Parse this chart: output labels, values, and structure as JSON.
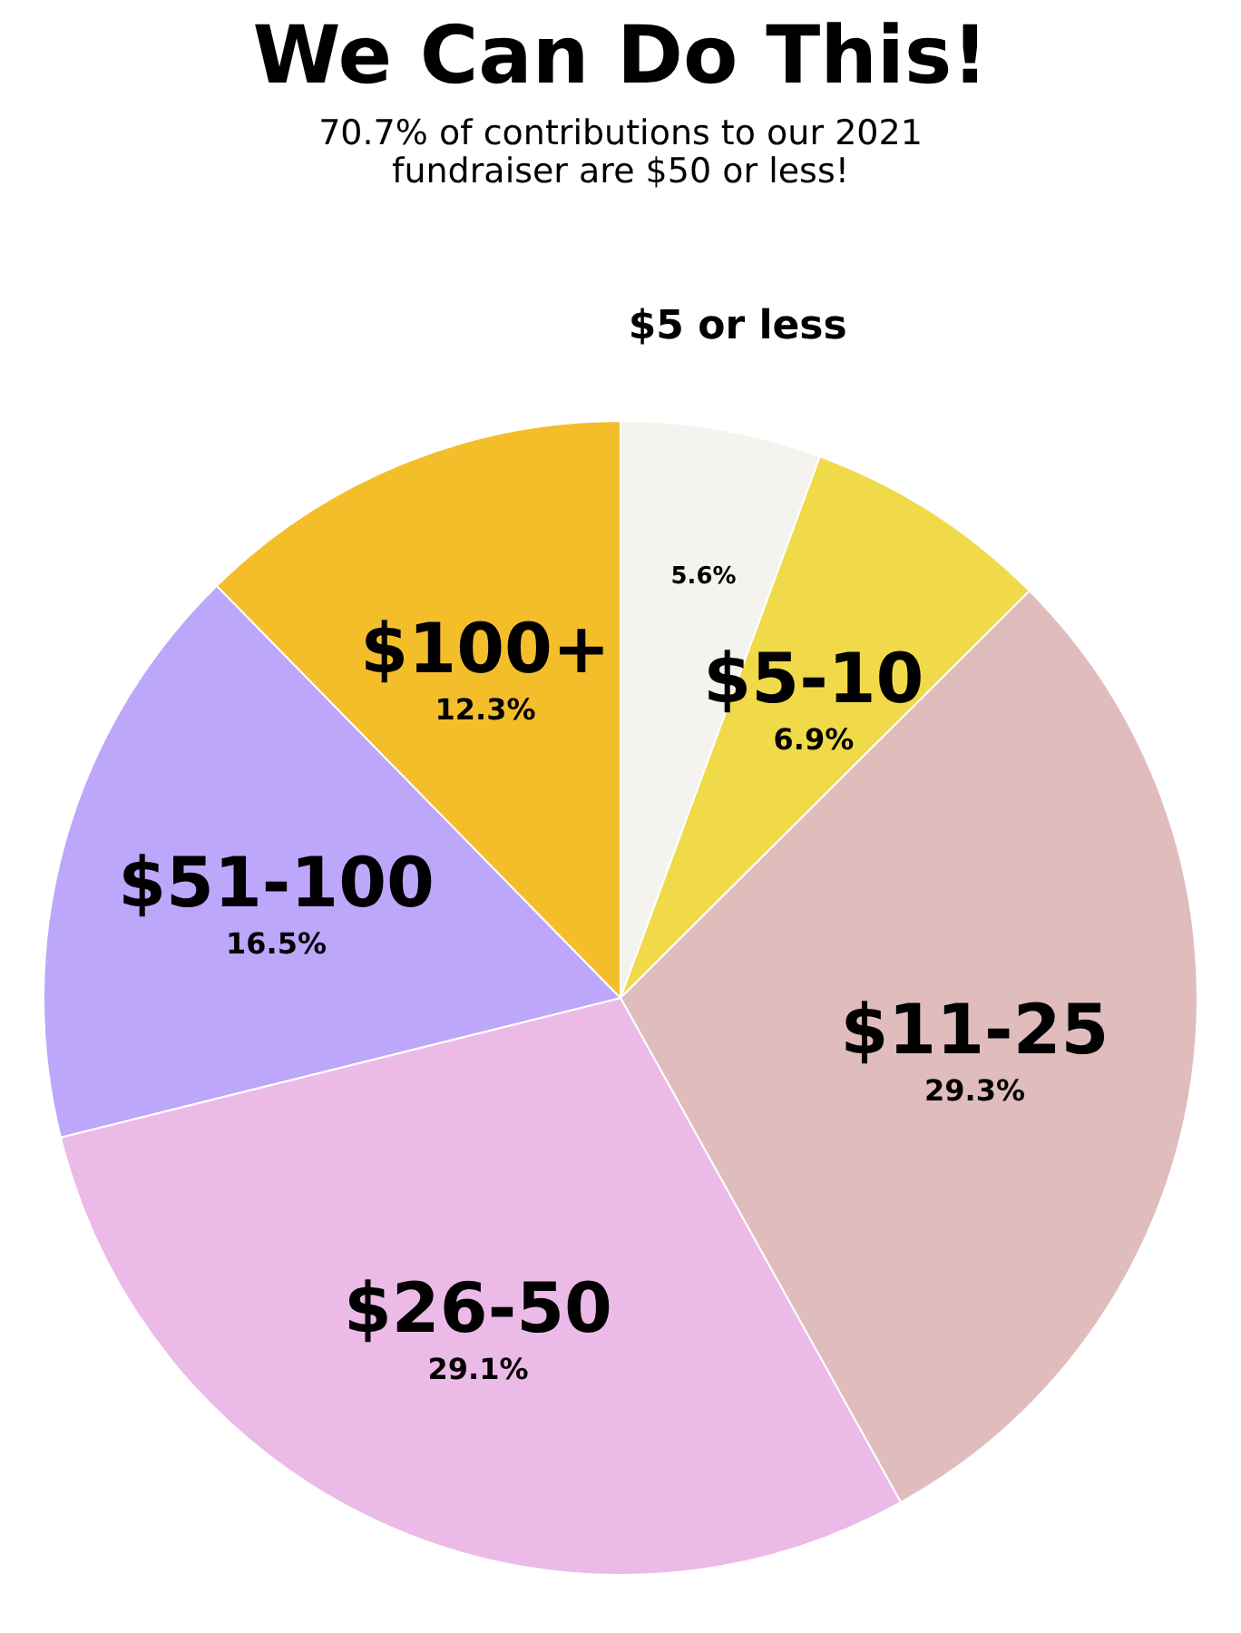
{
  "chart_data": {
    "type": "pie",
    "title": "We Can Do This!",
    "subtitle": "70.7% of contributions to our 2021\nfundraiser are $50 or less!",
    "categories": [
      "$5 or less",
      "$5-10",
      "$11-25",
      "$26-50",
      "$51-100",
      "$100+"
    ],
    "values": [
      5.6,
      6.9,
      29.3,
      29.1,
      16.5,
      12.3
    ],
    "value_labels": [
      "5.6%",
      "6.9%",
      "29.3%",
      "29.1%",
      "16.5%",
      "12.3%"
    ],
    "colors": [
      "#f5f3ee",
      "#f0da4a",
      "#e0bcbc",
      "#ebbae6",
      "#bca7fb",
      "#f4be2b"
    ],
    "legend": false
  }
}
